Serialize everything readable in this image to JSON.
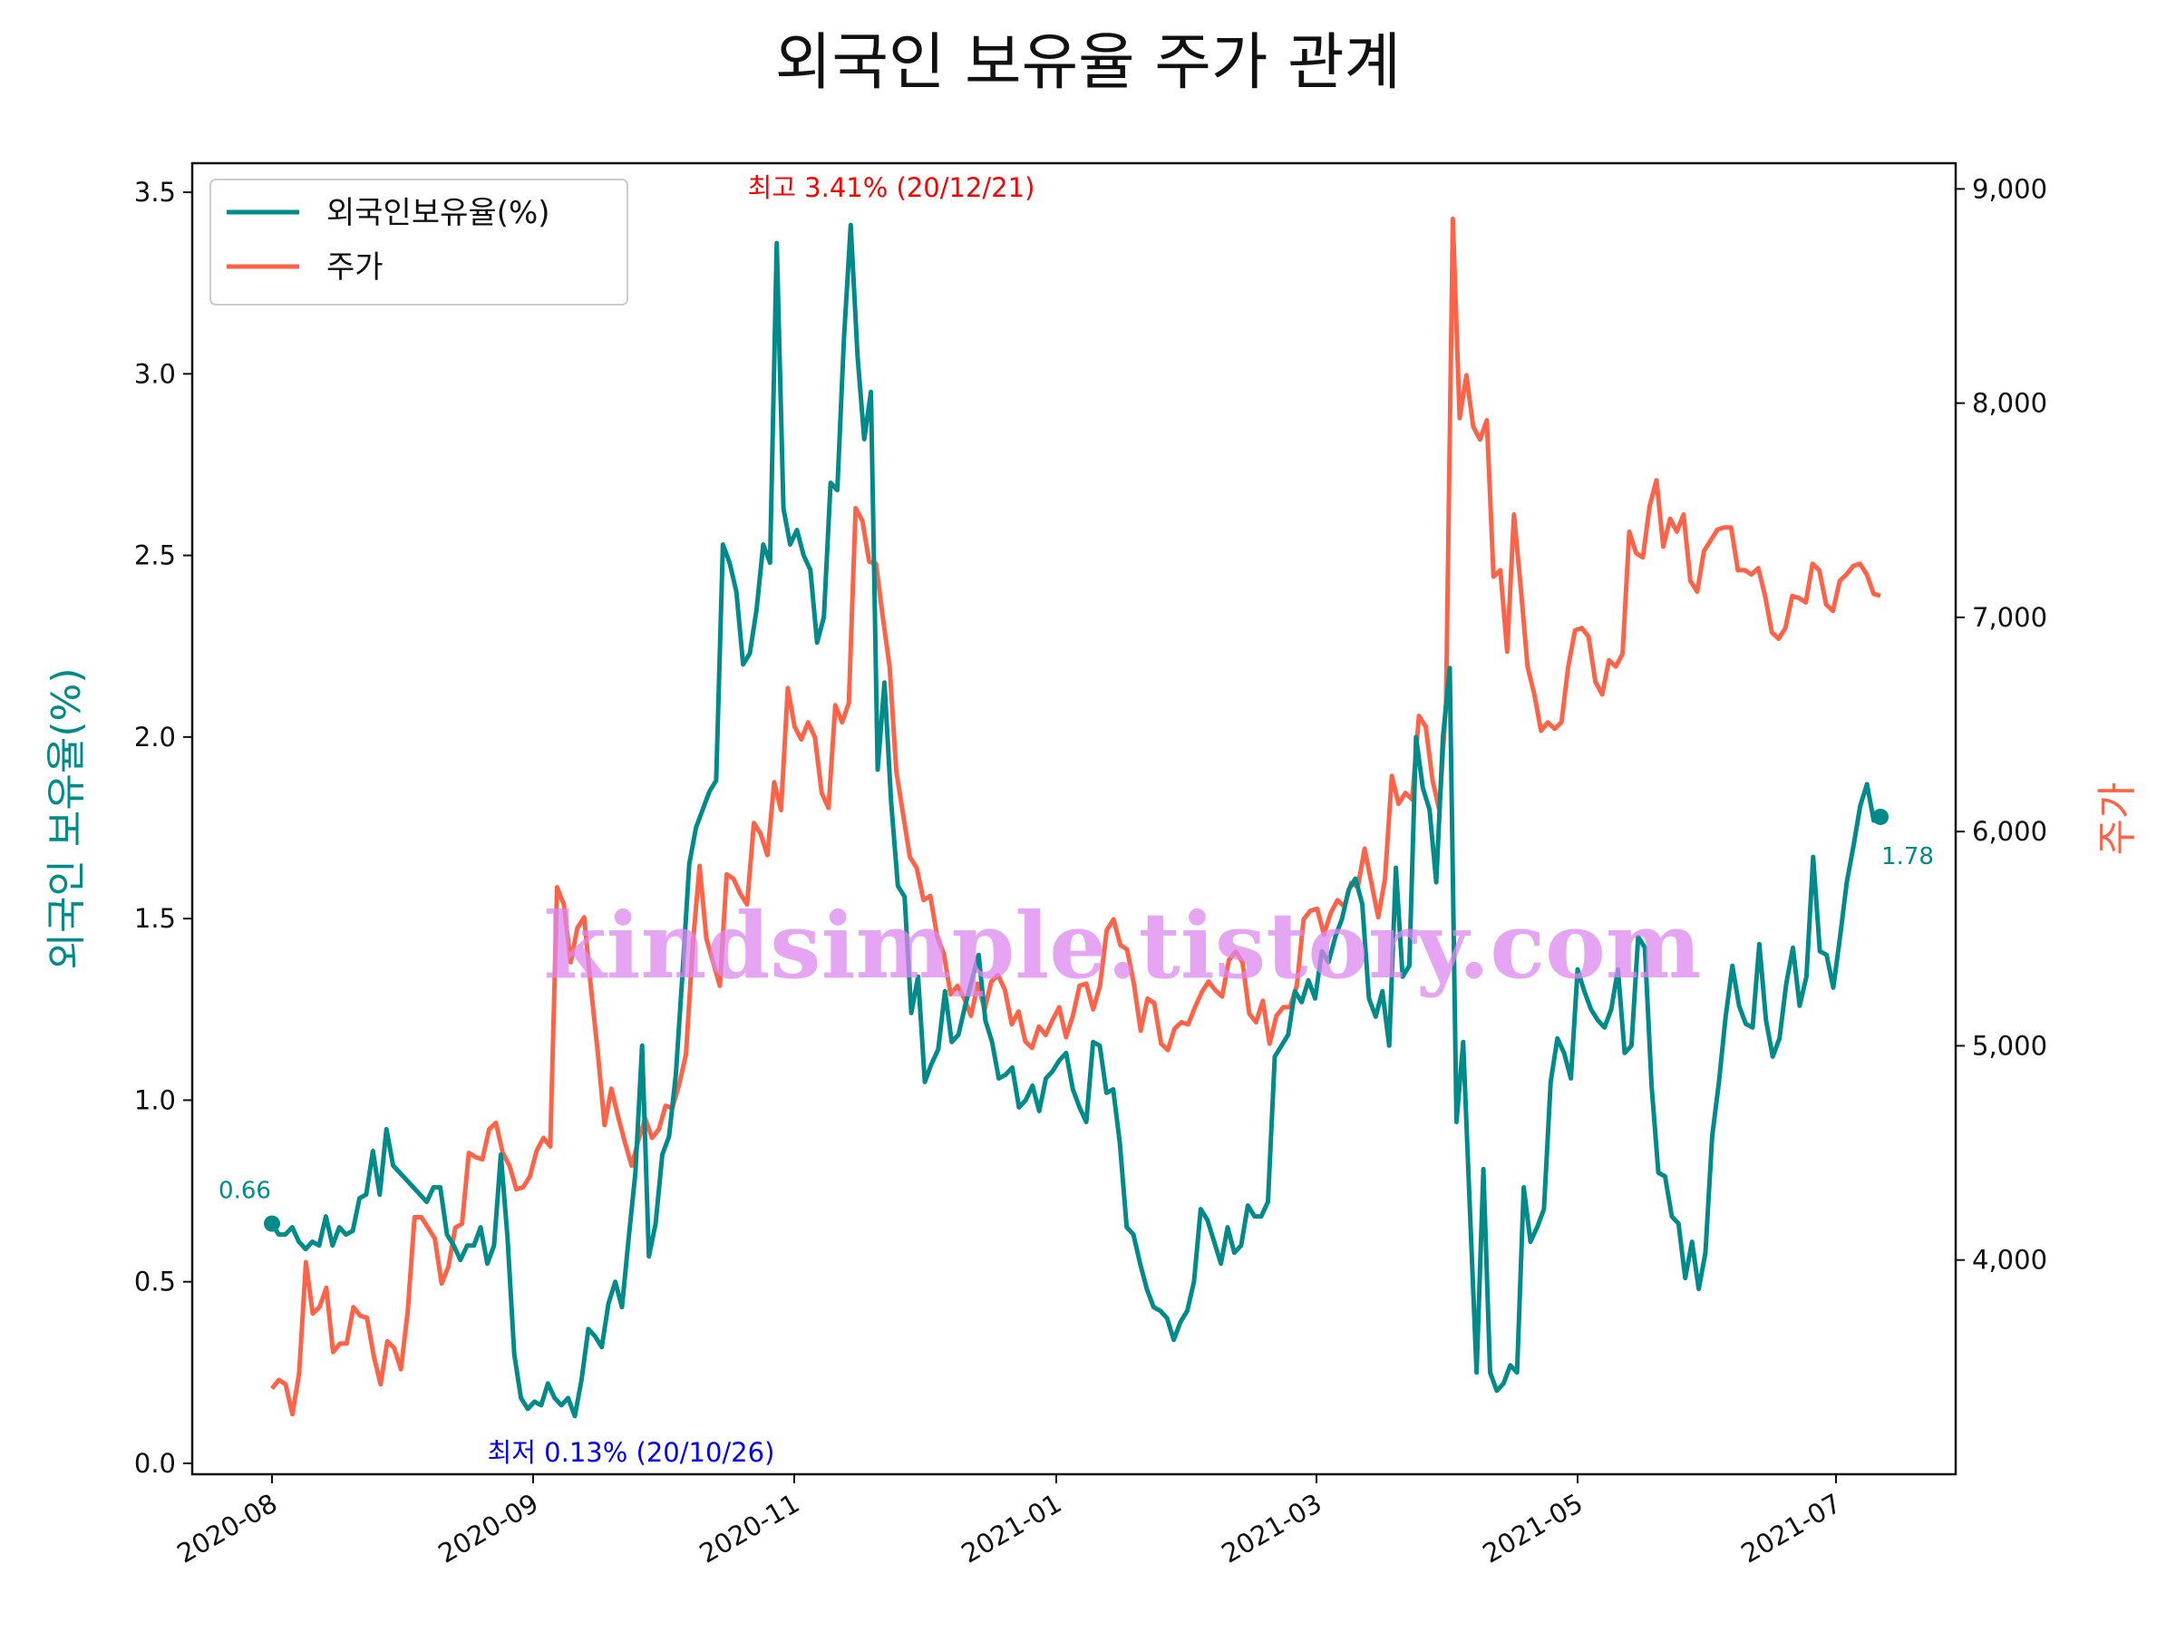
{
  "chart_data": {
    "type": "line",
    "title": "외국인 보유율 주가 관계",
    "ylabel_left": "외국인 보유율(%)",
    "ylabel_right": "주가",
    "xlabel": "",
    "ylim_left": [
      -0.03,
      3.58
    ],
    "ylim_right": [
      3000,
      9120
    ],
    "x_ticks": [
      "2020-08",
      "2020-09",
      "2020-11",
      "2021-01",
      "2021-03",
      "2021-05",
      "2021-07"
    ],
    "y_ticks_left": [
      "0.0",
      "0.5",
      "1.0",
      "1.5",
      "2.0",
      "2.5",
      "3.0",
      "3.5"
    ],
    "y_ticks_right": [
      "4,000",
      "5,000",
      "6,000",
      "7,000",
      "8,000",
      "9,000"
    ],
    "legend": [
      "외국인보유율(%)",
      "주가"
    ],
    "legend_position": "top-left",
    "colors": {
      "foreign": "#008b8b",
      "price": "#ff6347",
      "max_anno": "#ff0000",
      "min_anno": "#0000ff",
      "watermark": "#dd88ee"
    },
    "annotations": {
      "max": "최고 3.41% (20/12/21)",
      "min": "최저 0.13% (20/10/26)",
      "start": "0.66",
      "end": "1.78"
    },
    "watermark": "kindsimple.tistory.com",
    "series": [
      {
        "name": "외국인보유율(%)",
        "axis": "left",
        "values": [
          0.66,
          0.63,
          0.63,
          0.65,
          0.61,
          0.59,
          0.61,
          0.6,
          0.68,
          0.6,
          0.65,
          0.63,
          0.64,
          0.73,
          0.74,
          0.86,
          0.74,
          0.92,
          0.82,
          0.8,
          0.78,
          0.76,
          0.74,
          0.72,
          0.76,
          0.76,
          0.63,
          0.6,
          0.56,
          0.6,
          0.6,
          0.65,
          0.55,
          0.6,
          0.85,
          0.62,
          0.3,
          0.18,
          0.15,
          0.17,
          0.16,
          0.22,
          0.18,
          0.16,
          0.18,
          0.13,
          0.23,
          0.37,
          0.35,
          0.32,
          0.44,
          0.5,
          0.43,
          0.62,
          0.8,
          1.15,
          0.57,
          0.66,
          0.85,
          0.9,
          1.07,
          1.35,
          1.65,
          1.75,
          1.8,
          1.85,
          1.88,
          2.53,
          2.48,
          2.4,
          2.2,
          2.23,
          2.35,
          2.53,
          2.48,
          3.36,
          2.63,
          2.53,
          2.57,
          2.5,
          2.46,
          2.26,
          2.33,
          2.7,
          2.68,
          3.1,
          3.41,
          3.05,
          2.82,
          2.95,
          1.91,
          2.15,
          1.82,
          1.59,
          1.56,
          1.24,
          1.34,
          1.05,
          1.1,
          1.14,
          1.3,
          1.16,
          1.18,
          1.26,
          1.33,
          1.4,
          1.22,
          1.16,
          1.06,
          1.07,
          1.09,
          0.98,
          1.0,
          1.04,
          0.97,
          1.06,
          1.08,
          1.11,
          1.13,
          1.03,
          0.98,
          0.94,
          1.16,
          1.15,
          1.02,
          1.03,
          0.88,
          0.65,
          0.63,
          0.55,
          0.48,
          0.43,
          0.42,
          0.4,
          0.34,
          0.39,
          0.42,
          0.5,
          0.7,
          0.67,
          0.61,
          0.55,
          0.65,
          0.58,
          0.6,
          0.71,
          0.68,
          0.68,
          0.72,
          1.12,
          1.15,
          1.18,
          1.3,
          1.27,
          1.33,
          1.28,
          1.41,
          1.38,
          1.45,
          1.5,
          1.58,
          1.61,
          1.54,
          1.28,
          1.23,
          1.3,
          1.15,
          1.64,
          1.34,
          1.37,
          2.0,
          1.86,
          1.8,
          1.6,
          2.0,
          2.19,
          0.94,
          1.16,
          0.7,
          0.25,
          0.81,
          0.25,
          0.2,
          0.22,
          0.27,
          0.25,
          0.76,
          0.61,
          0.65,
          0.7,
          1.05,
          1.17,
          1.13,
          1.06,
          1.36,
          1.3,
          1.25,
          1.22,
          1.2,
          1.25,
          1.36,
          1.13,
          1.15,
          1.45,
          1.42,
          1.04,
          0.8,
          0.79,
          0.68,
          0.66,
          0.51,
          0.61,
          0.48,
          0.58,
          0.9,
          1.05,
          1.23,
          1.37,
          1.26,
          1.21,
          1.2,
          1.43,
          1.22,
          1.12,
          1.17,
          1.32,
          1.42,
          1.26,
          1.34,
          1.67,
          1.41,
          1.4,
          1.31,
          1.45,
          1.6,
          1.7,
          1.81,
          1.87,
          1.77,
          1.78
        ]
      },
      {
        "name": "주가",
        "axis": "right",
        "values": [
          3400,
          3440,
          3420,
          3280,
          3470,
          3990,
          3750,
          3780,
          3870,
          3570,
          3610,
          3610,
          3780,
          3740,
          3730,
          3550,
          3420,
          3620,
          3590,
          3490,
          3760,
          4200,
          4200,
          4150,
          4100,
          3890,
          3970,
          4150,
          4170,
          4500,
          4480,
          4470,
          4610,
          4640,
          4500,
          4440,
          4330,
          4340,
          4390,
          4510,
          4570,
          4530,
          5740,
          5660,
          5390,
          5550,
          5600,
          5270,
          4970,
          4630,
          4800,
          4670,
          4550,
          4440,
          4560,
          4660,
          4570,
          4610,
          4720,
          4710,
          4820,
          4960,
          5470,
          5840,
          5500,
          5390,
          5280,
          5800,
          5780,
          5710,
          5660,
          6040,
          5990,
          5890,
          6230,
          6100,
          6670,
          6490,
          6430,
          6510,
          6440,
          6180,
          6110,
          6590,
          6510,
          6600,
          7510,
          7450,
          7260,
          7250,
          7000,
          6770,
          6280,
          6080,
          5880,
          5830,
          5680,
          5700,
          5510,
          5430,
          5240,
          5280,
          5220,
          5140,
          5290,
          5170,
          5300,
          5330,
          5260,
          5100,
          5160,
          5020,
          4990,
          5090,
          5050,
          5120,
          5180,
          5040,
          5140,
          5280,
          5290,
          5170,
          5280,
          5540,
          5590,
          5470,
          5450,
          5290,
          5070,
          5220,
          5200,
          5010,
          4980,
          5080,
          5110,
          5100,
          5180,
          5250,
          5300,
          5260,
          5230,
          5400,
          5440,
          5390,
          5150,
          5110,
          5210,
          5010,
          5140,
          5180,
          5180,
          5280,
          5590,
          5630,
          5640,
          5520,
          5620,
          5680,
          5650,
          5760,
          5740,
          5920,
          5760,
          5600,
          5780,
          6260,
          6130,
          6180,
          6150,
          6540,
          6490,
          6240,
          6100,
          6600,
          8860,
          7930,
          8130,
          7890,
          7830,
          7920,
          7190,
          7220,
          6840,
          7480,
          7140,
          6770,
          6640,
          6470,
          6510,
          6480,
          6510,
          6770,
          6940,
          6950,
          6910,
          6700,
          6640,
          6800,
          6770,
          6830,
          7400,
          7300,
          7280,
          7520,
          7640,
          7330,
          7460,
          7400,
          7480,
          7170,
          7120,
          7310,
          7360,
          7410,
          7420,
          7420,
          7220,
          7220,
          7200,
          7230,
          7100,
          6930,
          6900,
          6950,
          7100,
          7090,
          7070,
          7250,
          7220,
          7060,
          7030,
          7170,
          7200,
          7240,
          7250,
          7200,
          7110,
          7100
        ]
      }
    ]
  }
}
